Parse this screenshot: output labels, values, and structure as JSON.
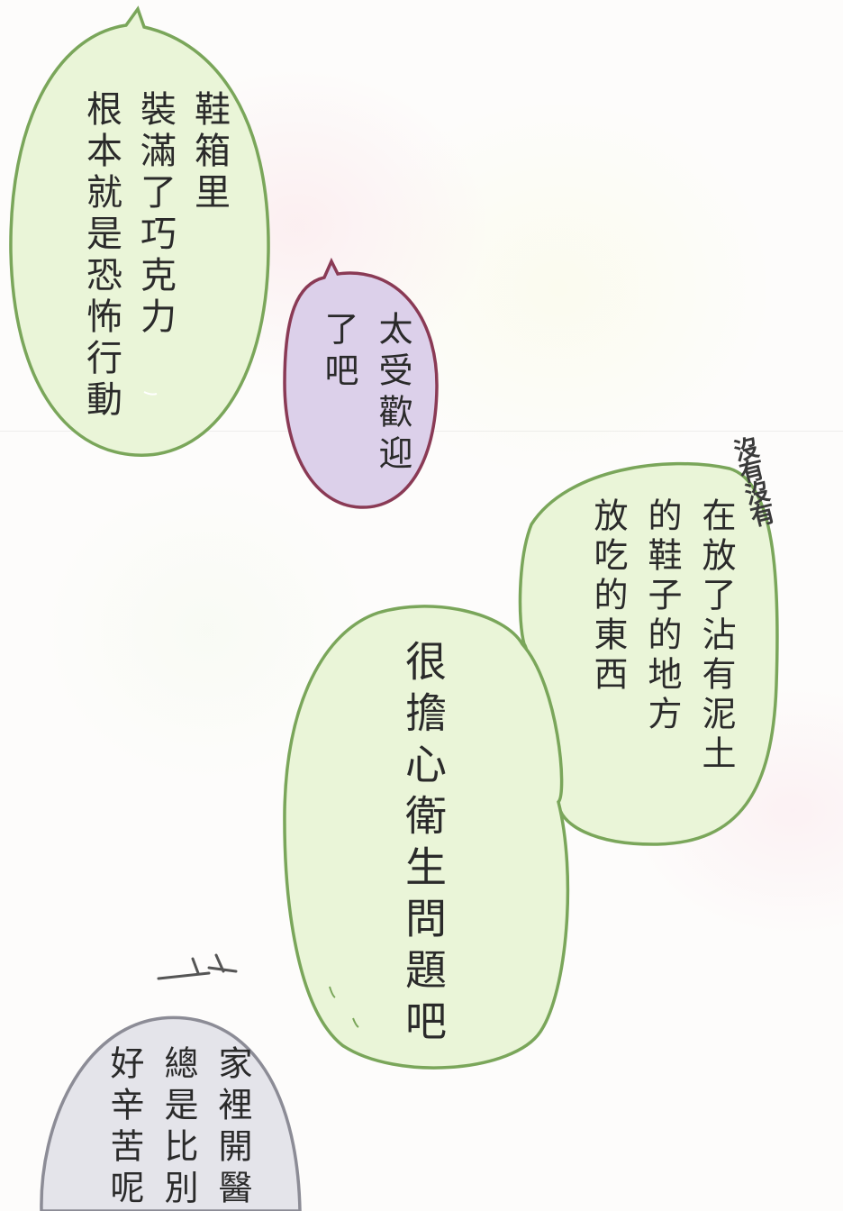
{
  "bubbles": {
    "shoe_box": {
      "lines": [
        "鞋箱里",
        "裝滿了巧克力",
        "根本就是恐怖行動"
      ],
      "fill": "#eaf5d8",
      "stroke": "#7aa65a"
    },
    "popular": {
      "lines": [
        "太受歡迎",
        "了吧"
      ],
      "fill": "#dcd0ea",
      "stroke": "#8a3a55"
    },
    "muddy_shoes": {
      "lines": [
        "在放了沾有泥土",
        "的鞋子的地方",
        "放吃的東西"
      ],
      "fill": "#eaf5d8",
      "stroke": "#7aa65a"
    },
    "hygiene": {
      "lines": [
        "很擔心衛生問題吧"
      ],
      "fill": "#eaf5d8",
      "stroke": "#7aa65a"
    },
    "clinic": {
      "lines": [
        "家裡開醫",
        "總是比別",
        "好辛苦呢"
      ],
      "fill": "#e4e4ea",
      "stroke": "#8c8c96"
    }
  },
  "sfx": {
    "no_no": "沒有沒有"
  }
}
